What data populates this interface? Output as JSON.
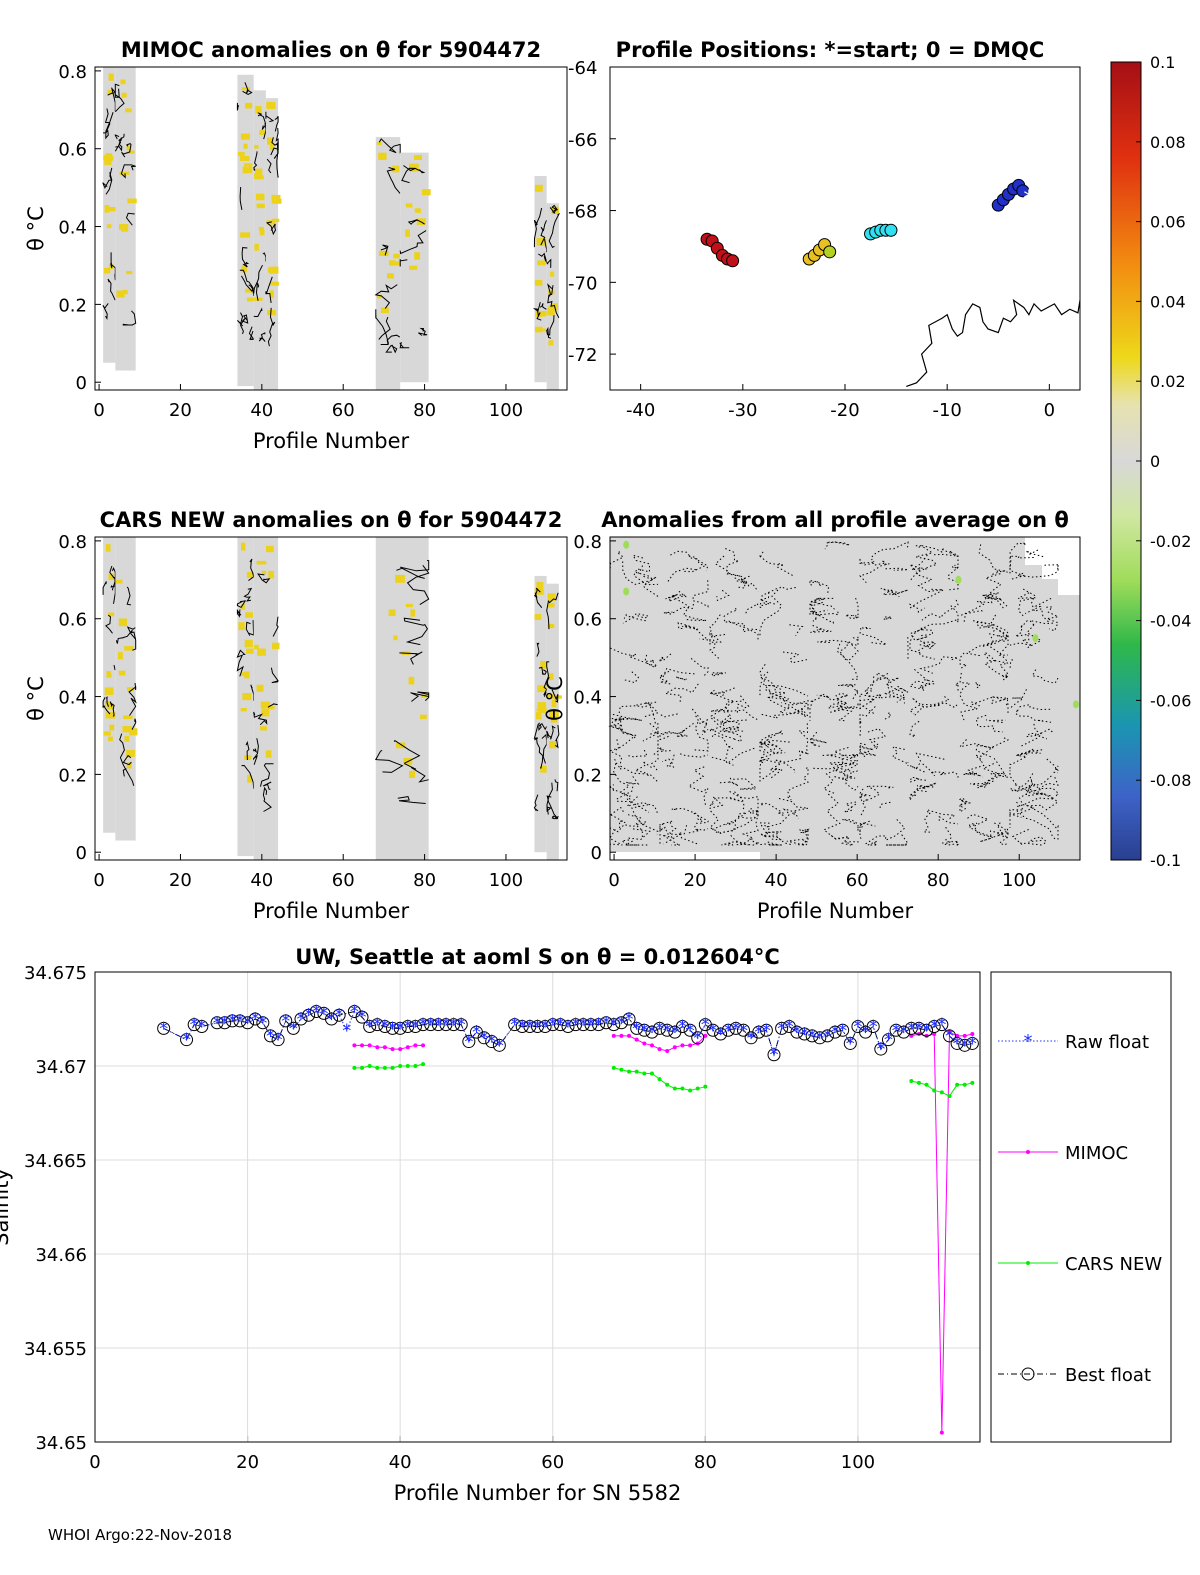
{
  "footer": "WHOI Argo:22-Nov-2018",
  "colors": {
    "axis": "#000000",
    "grid": "#dcdcdc",
    "nan_fill": "#d8d8d8",
    "yellow": "#ecd21a",
    "raw_float": "#1f2fff",
    "mimoc": "#ff00ff",
    "cars": "#00ee00",
    "best": "#000000"
  },
  "colorbar": {
    "ticks": [
      "0.1",
      "0.08",
      "0.06",
      "0.04",
      "0.02",
      "0",
      "-0.02",
      "-0.04",
      "-0.06",
      "-0.08",
      "-0.1"
    ],
    "range": [
      -0.1,
      0.1
    ]
  },
  "chart_data": [
    {
      "id": "mimoc",
      "type": "heatmap",
      "title": "MIMOC anomalies on θ  for 5904472",
      "xlabel": "Profile Number",
      "ylabel": "θ °C",
      "xlim": [
        -1,
        115
      ],
      "ylim": [
        -0.02,
        0.81
      ],
      "xticks": [
        "0",
        "20",
        "40",
        "60",
        "80",
        "100"
      ],
      "yticks": [
        "0",
        "0.2",
        "0.4",
        "0.6",
        "0.8"
      ],
      "blocks": [
        {
          "x0": 1,
          "x1": 4,
          "ymin": 0.05,
          "ymax": 0.81
        },
        {
          "x0": 4,
          "x1": 9,
          "ymin": 0.03,
          "ymax": 0.81
        },
        {
          "x0": 34,
          "x1": 38,
          "ymin": -0.01,
          "ymax": 0.79
        },
        {
          "x0": 38,
          "x1": 41,
          "ymin": -0.02,
          "ymax": 0.75
        },
        {
          "x0": 41,
          "x1": 44,
          "ymin": -0.02,
          "ymax": 0.73
        },
        {
          "x0": 68,
          "x1": 74,
          "ymin": -0.02,
          "ymax": 0.63
        },
        {
          "x0": 74,
          "x1": 81,
          "ymin": 0.0,
          "ymax": 0.59
        },
        {
          "x0": 107,
          "x1": 110,
          "ymin": 0.0,
          "ymax": 0.53
        },
        {
          "x0": 110,
          "x1": 113,
          "ymin": -0.02,
          "ymax": 0.46
        }
      ]
    },
    {
      "id": "positions",
      "type": "scatter",
      "title": "Profile Positions: *=start; 0 = DMQC",
      "xlim": [
        -43,
        3
      ],
      "ylim": [
        -73,
        -64
      ],
      "xticks": [
        "-40",
        "-30",
        "-20",
        "-10",
        "0"
      ],
      "yticks": [
        "-64",
        "-66",
        "-68",
        "-70",
        "-72"
      ],
      "groups": [
        {
          "color": "#2030c8",
          "points": [
            [
              -5,
              -67.85
            ],
            [
              -4.5,
              -67.7
            ],
            [
              -4,
              -67.55
            ],
            [
              -3.5,
              -67.4
            ],
            [
              -3,
              -67.3
            ],
            [
              -2.6,
              -67.45
            ]
          ]
        },
        {
          "color": "#30e0f0",
          "points": [
            [
              -17.5,
              -68.65
            ],
            [
              -17,
              -68.6
            ],
            [
              -16.5,
              -68.55
            ],
            [
              -16,
              -68.55
            ],
            [
              -15.5,
              -68.55
            ]
          ]
        },
        {
          "color": "#e8c020",
          "points": [
            [
              -23.5,
              -69.35
            ],
            [
              -23,
              -69.25
            ],
            [
              -22.5,
              -69.1
            ],
            [
              -22,
              -68.95
            ]
          ]
        },
        {
          "color": "#b4d020",
          "points": [
            [
              -21.5,
              -69.15
            ]
          ]
        },
        {
          "color": "#c01018",
          "points": [
            [
              -33.5,
              -68.8
            ],
            [
              -33,
              -68.85
            ],
            [
              -32.5,
              -69.05
            ],
            [
              -32,
              -69.25
            ],
            [
              -31.5,
              -69.35
            ],
            [
              -31,
              -69.4
            ]
          ]
        }
      ],
      "start": [
        -2,
        -67.65
      ],
      "coastline": [
        [
          -14,
          -72.9
        ],
        [
          -13,
          -72.8
        ],
        [
          -12,
          -72.5
        ],
        [
          -12.5,
          -72.0
        ],
        [
          -11.5,
          -71.7
        ],
        [
          -11.8,
          -71.2
        ],
        [
          -10.5,
          -71.0
        ],
        [
          -10,
          -70.9
        ],
        [
          -9.5,
          -71.3
        ],
        [
          -9,
          -71.5
        ],
        [
          -8.5,
          -71.4
        ],
        [
          -8.2,
          -70.9
        ],
        [
          -7.5,
          -70.6
        ],
        [
          -6.8,
          -70.7
        ],
        [
          -6.5,
          -71.1
        ],
        [
          -6,
          -71.3
        ],
        [
          -5,
          -71.4
        ],
        [
          -4.5,
          -71.0
        ],
        [
          -3.8,
          -71.1
        ],
        [
          -3.2,
          -70.9
        ],
        [
          -3.5,
          -70.5
        ],
        [
          -2.5,
          -70.7
        ],
        [
          -2,
          -70.9
        ],
        [
          -1.5,
          -70.6
        ],
        [
          -0.8,
          -70.8
        ],
        [
          0.5,
          -70.6
        ],
        [
          1.2,
          -70.9
        ],
        [
          2,
          -70.75
        ],
        [
          2.8,
          -70.85
        ],
        [
          3,
          -70.5
        ]
      ]
    },
    {
      "id": "cars",
      "type": "heatmap",
      "title": "CARS NEW anomalies on θ for 5904472",
      "xlabel": "Profile Number",
      "ylabel": "θ °C",
      "xlim": [
        -1,
        115
      ],
      "ylim": [
        -0.02,
        0.81
      ],
      "xticks": [
        "0",
        "20",
        "40",
        "60",
        "80",
        "100"
      ],
      "yticks": [
        "0",
        "0.2",
        "0.4",
        "0.6",
        "0.8"
      ],
      "blocks": [
        {
          "x0": 1,
          "x1": 4,
          "ymin": 0.05,
          "ymax": 0.81
        },
        {
          "x0": 4,
          "x1": 9,
          "ymin": 0.03,
          "ymax": 0.81
        },
        {
          "x0": 34,
          "x1": 38,
          "ymin": -0.01,
          "ymax": 0.81
        },
        {
          "x0": 38,
          "x1": 44,
          "ymin": -0.02,
          "ymax": 0.81
        },
        {
          "x0": 68,
          "x1": 81,
          "ymin": -0.02,
          "ymax": 0.81
        },
        {
          "x0": 107,
          "x1": 110,
          "ymin": 0.0,
          "ymax": 0.71
        },
        {
          "x0": 110,
          "x1": 113,
          "ymin": -0.02,
          "ymax": 0.69
        }
      ]
    },
    {
      "id": "allavg",
      "type": "heatmap",
      "title": "Anomalies from all profile average on θ",
      "xlabel": "Profile Number",
      "ylabel": "θ °C",
      "xlim": [
        -1,
        115
      ],
      "ylim": [
        -0.02,
        0.81
      ],
      "xticks": [
        "0",
        "20",
        "40",
        "60",
        "80",
        "100"
      ],
      "yticks": [
        "0",
        "0.2",
        "0.4",
        "0.6",
        "0.8"
      ]
    },
    {
      "id": "salinity",
      "type": "line",
      "title": "UW, Seattle at aoml S on θ = 0.012604°C",
      "xlabel": "Profile Number for SN 5582",
      "ylabel": "Salinity",
      "xlim": [
        0,
        116
      ],
      "ylim": [
        34.65,
        34.675
      ],
      "xticks": [
        "0",
        "20",
        "40",
        "60",
        "80",
        "100"
      ],
      "yticks": [
        "34.65",
        "34.655",
        "34.66",
        "34.665",
        "34.67",
        "34.675"
      ],
      "legend": [
        "Raw float",
        "MIMOC",
        "CARS NEW",
        "Best float"
      ],
      "raw_float": {
        "x": [
          9,
          12,
          13,
          14,
          16,
          17,
          18,
          19,
          20,
          21,
          22,
          23,
          24,
          25,
          26,
          27,
          28,
          29,
          30,
          31,
          32,
          33,
          34,
          35,
          36,
          37,
          38,
          39,
          40,
          41,
          42,
          43,
          44,
          45,
          46,
          47,
          48,
          49,
          50,
          51,
          52,
          53,
          55,
          56,
          57,
          58,
          59,
          60,
          61,
          62,
          63,
          64,
          65,
          66,
          67,
          68,
          69,
          70,
          71,
          72,
          73,
          74,
          75,
          76,
          77,
          78,
          79,
          80,
          81,
          82,
          83,
          84,
          85,
          86,
          87,
          88,
          89,
          90,
          91,
          92,
          93,
          94,
          95,
          96,
          97,
          98,
          99,
          100,
          101,
          102,
          103,
          104,
          105,
          106,
          107,
          108,
          109,
          110,
          111,
          112,
          113,
          114,
          115
        ],
        "y": [
          34.672,
          34.6714,
          34.6722,
          34.6721,
          34.6723,
          34.6723,
          34.6724,
          34.6724,
          34.6723,
          34.6725,
          34.6723,
          34.6716,
          34.6714,
          34.6724,
          34.672,
          34.6725,
          34.6727,
          34.6729,
          34.6728,
          34.6725,
          34.6727,
          34.6719,
          34.6729,
          34.6726,
          34.6721,
          34.6722,
          34.6721,
          34.672,
          34.672,
          34.6721,
          34.6721,
          34.6722,
          34.6722,
          34.6722,
          34.6722,
          34.6722,
          34.6722,
          34.6713,
          34.6718,
          34.6715,
          34.6713,
          34.6711,
          34.6722,
          34.6721,
          34.6721,
          34.6721,
          34.6721,
          34.6722,
          34.6722,
          34.6721,
          34.6722,
          34.6722,
          34.6722,
          34.6722,
          34.6723,
          34.6722,
          34.6723,
          34.6725,
          34.672,
          34.6719,
          34.6718,
          34.672,
          34.6719,
          34.6718,
          34.6721,
          34.6719,
          34.6715,
          34.6722,
          34.6719,
          34.6717,
          34.6719,
          34.672,
          34.6719,
          34.6715,
          34.6718,
          34.6719,
          34.6706,
          34.672,
          34.6721,
          34.6718,
          34.6717,
          34.6716,
          34.6715,
          34.6716,
          34.6718,
          34.6719,
          34.6712,
          34.6721,
          34.6718,
          34.6721,
          34.6709,
          34.6714,
          34.6719,
          34.6718,
          34.672,
          34.672,
          34.6719,
          34.6721,
          34.6722,
          34.6716,
          34.6712,
          34.6711,
          34.6712
        ]
      },
      "best_float": {
        "x": [
          9,
          12,
          13,
          14,
          16,
          17,
          18,
          19,
          20,
          21,
          22,
          23,
          24,
          25,
          26,
          27,
          28,
          29,
          30,
          31,
          32,
          34,
          35,
          36,
          37,
          38,
          39,
          40,
          41,
          42,
          43,
          44,
          45,
          46,
          47,
          48,
          49,
          50,
          51,
          52,
          53,
          55,
          56,
          57,
          58,
          59,
          60,
          61,
          62,
          63,
          64,
          65,
          66,
          67,
          68,
          69,
          70,
          71,
          72,
          73,
          74,
          75,
          76,
          77,
          78,
          79,
          80,
          81,
          82,
          83,
          84,
          85,
          86,
          87,
          88,
          89,
          90,
          91,
          92,
          93,
          94,
          95,
          96,
          97,
          98,
          99,
          100,
          101,
          102,
          103,
          104,
          105,
          106,
          107,
          108,
          109,
          110,
          111,
          112,
          113,
          114,
          115
        ],
        "y": [
          34.672,
          34.6714,
          34.6722,
          34.6721,
          34.6723,
          34.6723,
          34.6724,
          34.6724,
          34.6723,
          34.6725,
          34.6723,
          34.6716,
          34.6714,
          34.6724,
          34.672,
          34.6725,
          34.6727,
          34.6729,
          34.6728,
          34.6725,
          34.6727,
          34.6729,
          34.6726,
          34.6721,
          34.6722,
          34.6721,
          34.672,
          34.672,
          34.6721,
          34.6721,
          34.6722,
          34.6722,
          34.6722,
          34.6722,
          34.6722,
          34.6722,
          34.6713,
          34.6718,
          34.6715,
          34.6713,
          34.6711,
          34.6722,
          34.6721,
          34.6721,
          34.6721,
          34.6721,
          34.6722,
          34.6722,
          34.6721,
          34.6722,
          34.6722,
          34.6722,
          34.6722,
          34.6723,
          34.6722,
          34.6723,
          34.6725,
          34.672,
          34.6719,
          34.6718,
          34.672,
          34.6719,
          34.6718,
          34.6721,
          34.6719,
          34.6715,
          34.6722,
          34.6719,
          34.6717,
          34.6719,
          34.672,
          34.6719,
          34.6715,
          34.6718,
          34.6719,
          34.6706,
          34.672,
          34.6721,
          34.6718,
          34.6717,
          34.6716,
          34.6715,
          34.6716,
          34.6718,
          34.6719,
          34.6712,
          34.6721,
          34.6718,
          34.6721,
          34.6709,
          34.6714,
          34.6719,
          34.6718,
          34.672,
          34.672,
          34.6719,
          34.6721,
          34.6722,
          34.6716,
          34.6712,
          34.6711,
          34.6712
        ]
      },
      "mimoc": {
        "segments": [
          {
            "x": [
              34,
              35,
              36,
              37,
              38,
              39,
              40,
              41,
              42,
              43
            ],
            "y": [
              34.6711,
              34.6711,
              34.6711,
              34.671,
              34.671,
              34.6709,
              34.6709,
              34.671,
              34.6711,
              34.6711
            ]
          },
          {
            "x": [
              68,
              69,
              70,
              71,
              72,
              73,
              74,
              75,
              76,
              77,
              78,
              79,
              80
            ],
            "y": [
              34.6716,
              34.6716,
              34.6716,
              34.6714,
              34.6712,
              34.6711,
              34.6709,
              34.6708,
              34.671,
              34.6711,
              34.6711,
              34.6712,
              34.6716
            ]
          },
          {
            "x": [
              107,
              108,
              109,
              110,
              111,
              112,
              113,
              114,
              115
            ],
            "y": [
              34.6716,
              34.6717,
              34.6716,
              34.6717,
              34.6505,
              34.6718,
              34.6716,
              34.6716,
              34.6717
            ]
          }
        ]
      },
      "cars_new": {
        "segments": [
          {
            "x": [
              34,
              35,
              36,
              37,
              38,
              39,
              40,
              41,
              42,
              43
            ],
            "y": [
              34.6699,
              34.6699,
              34.67,
              34.6699,
              34.6699,
              34.6699,
              34.67,
              34.67,
              34.67,
              34.6701
            ]
          },
          {
            "x": [
              68,
              69,
              70,
              71,
              72,
              73,
              74,
              75,
              76,
              77,
              78,
              79,
              80
            ],
            "y": [
              34.6699,
              34.6698,
              34.6697,
              34.6697,
              34.6696,
              34.6696,
              34.6693,
              34.669,
              34.6688,
              34.6688,
              34.6687,
              34.6688,
              34.6689
            ]
          },
          {
            "x": [
              107,
              108,
              109,
              110,
              111,
              112,
              113,
              114,
              115
            ],
            "y": [
              34.6692,
              34.6691,
              34.669,
              34.6687,
              34.6686,
              34.6684,
              34.669,
              34.669,
              34.6691
            ]
          }
        ]
      }
    }
  ]
}
